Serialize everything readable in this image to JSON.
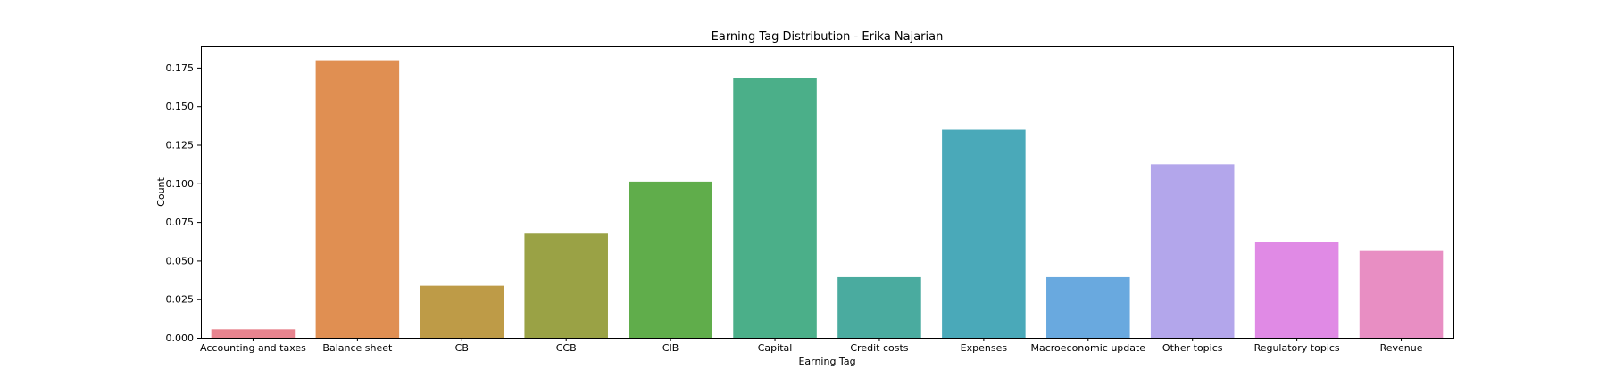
{
  "chart_data": {
    "type": "bar",
    "title": "Earning Tag Distribution - Erika Najarian",
    "xlabel": "Earning Tag",
    "ylabel": "Count",
    "categories": [
      "Accounting and taxes",
      "Balance sheet",
      "CB",
      "CCB",
      "CIB",
      "Capital",
      "Credit costs",
      "Expenses",
      "Macroeconomic update",
      "Other topics",
      "Regulatory topics",
      "Revenue"
    ],
    "values": [
      0.0056,
      0.1798,
      0.0337,
      0.0674,
      0.1011,
      0.1685,
      0.0393,
      0.1348,
      0.0393,
      0.1124,
      0.0618,
      0.0562
    ],
    "colors": [
      "#e8848f",
      "#e08f52",
      "#be9b47",
      "#9aa245",
      "#60ad4b",
      "#4baf89",
      "#4aab9f",
      "#4aa9b9",
      "#69a9df",
      "#b3a6eb",
      "#e08ae5",
      "#e88ec3"
    ],
    "yticks": [
      "0.000",
      "0.025",
      "0.050",
      "0.075",
      "0.100",
      "0.125",
      "0.150",
      "0.175"
    ],
    "ylim": [
      0,
      0.1888
    ],
    "grid": false
  }
}
